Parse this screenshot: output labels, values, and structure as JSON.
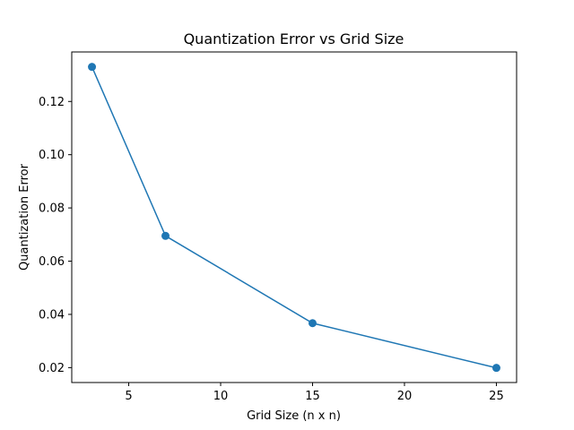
{
  "chart_data": {
    "type": "line",
    "title": "Quantization Error vs Grid Size",
    "xlabel": "Grid Size (n x n)",
    "ylabel": "Quantization Error",
    "x": [
      3,
      7,
      15,
      25
    ],
    "series": [
      {
        "values": [
          0.133,
          0.0695,
          0.0367,
          0.0199
        ],
        "color": "#1f77b4",
        "marker": "circle"
      }
    ],
    "xlim": [
      1.9,
      26.1
    ],
    "ylim": [
      0.0144,
      0.1386
    ],
    "xticks": [
      5,
      10,
      15,
      20,
      25
    ],
    "xtick_labels": [
      "5",
      "10",
      "15",
      "20",
      "25"
    ],
    "yticks": [
      0.02,
      0.04,
      0.06,
      0.08,
      0.1,
      0.12
    ],
    "ytick_labels": [
      "0.02",
      "0.04",
      "0.06",
      "0.08",
      "0.10",
      "0.12"
    ],
    "grid": false,
    "legend": "none"
  }
}
